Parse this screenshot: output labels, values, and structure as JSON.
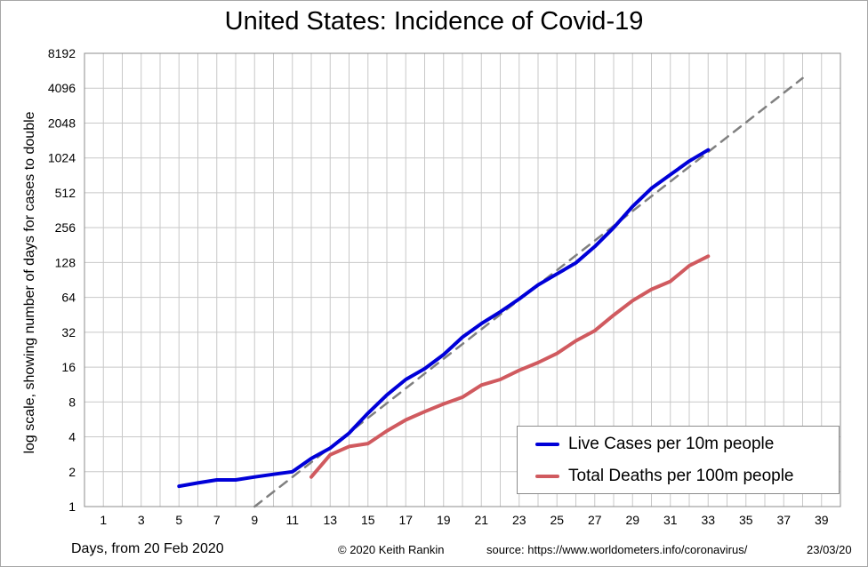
{
  "chart_data": {
    "type": "line",
    "title": "United States: Incidence of Covid-19",
    "ylabel": "log scale, showing number of days for cases to double",
    "xlabel": "Days, from 20 Feb 2020",
    "yscale": "log2",
    "ylim": [
      1,
      8192
    ],
    "xlim": [
      0,
      40
    ],
    "y_ticks": [
      1,
      2,
      4,
      8,
      16,
      32,
      64,
      128,
      256,
      512,
      1024,
      2048,
      4096,
      8192
    ],
    "y_tick_labels": [
      "1",
      "2",
      "4",
      "8",
      "16",
      "32",
      "64",
      "128",
      "256",
      "512",
      "1024",
      "2048",
      "4096",
      "8192"
    ],
    "x_ticks": [
      1,
      3,
      5,
      7,
      9,
      11,
      13,
      15,
      17,
      19,
      21,
      23,
      25,
      27,
      29,
      31,
      33,
      35,
      37,
      39
    ],
    "grid": true,
    "legend_position": "bottom-right",
    "series": [
      {
        "name": "Live Cases per 10m people",
        "color": "#0000d8",
        "x": [
          5,
          6,
          7,
          8,
          9,
          10,
          11,
          12,
          13,
          14,
          15,
          16,
          17,
          18,
          19,
          20,
          21,
          22,
          23,
          24,
          25,
          26,
          27,
          28,
          29,
          30,
          31,
          32,
          33
        ],
        "y": [
          1.5,
          1.6,
          1.7,
          1.7,
          1.8,
          1.9,
          2.0,
          2.6,
          3.2,
          4.3,
          6.4,
          9.2,
          12.5,
          15.5,
          20.5,
          29,
          38,
          48,
          62,
          82,
          102,
          127,
          176,
          256,
          390,
          560,
          735,
          960,
          1200
        ]
      },
      {
        "name": "Total Deaths per 100m people",
        "color": "#d05a5f",
        "x": [
          12,
          13,
          14,
          15,
          16,
          17,
          18,
          19,
          20,
          21,
          22,
          23,
          24,
          25,
          26,
          27,
          28,
          29,
          30,
          31,
          32,
          33
        ],
        "y": [
          1.8,
          2.8,
          3.3,
          3.5,
          4.5,
          5.6,
          6.6,
          7.7,
          8.8,
          11.2,
          12.5,
          15,
          17.5,
          21,
          27,
          33,
          45,
          60,
          75,
          88,
          120,
          145
        ]
      },
      {
        "color": "#808080",
        "style": "dashed",
        "x": [
          9,
          38
        ],
        "y": [
          1,
          5000
        ]
      }
    ]
  },
  "footer": {
    "copyright": "© 2020  Keith Rankin",
    "source": "source:  https://www.worldometers.info/coronavirus/",
    "date": "23/03/20"
  }
}
